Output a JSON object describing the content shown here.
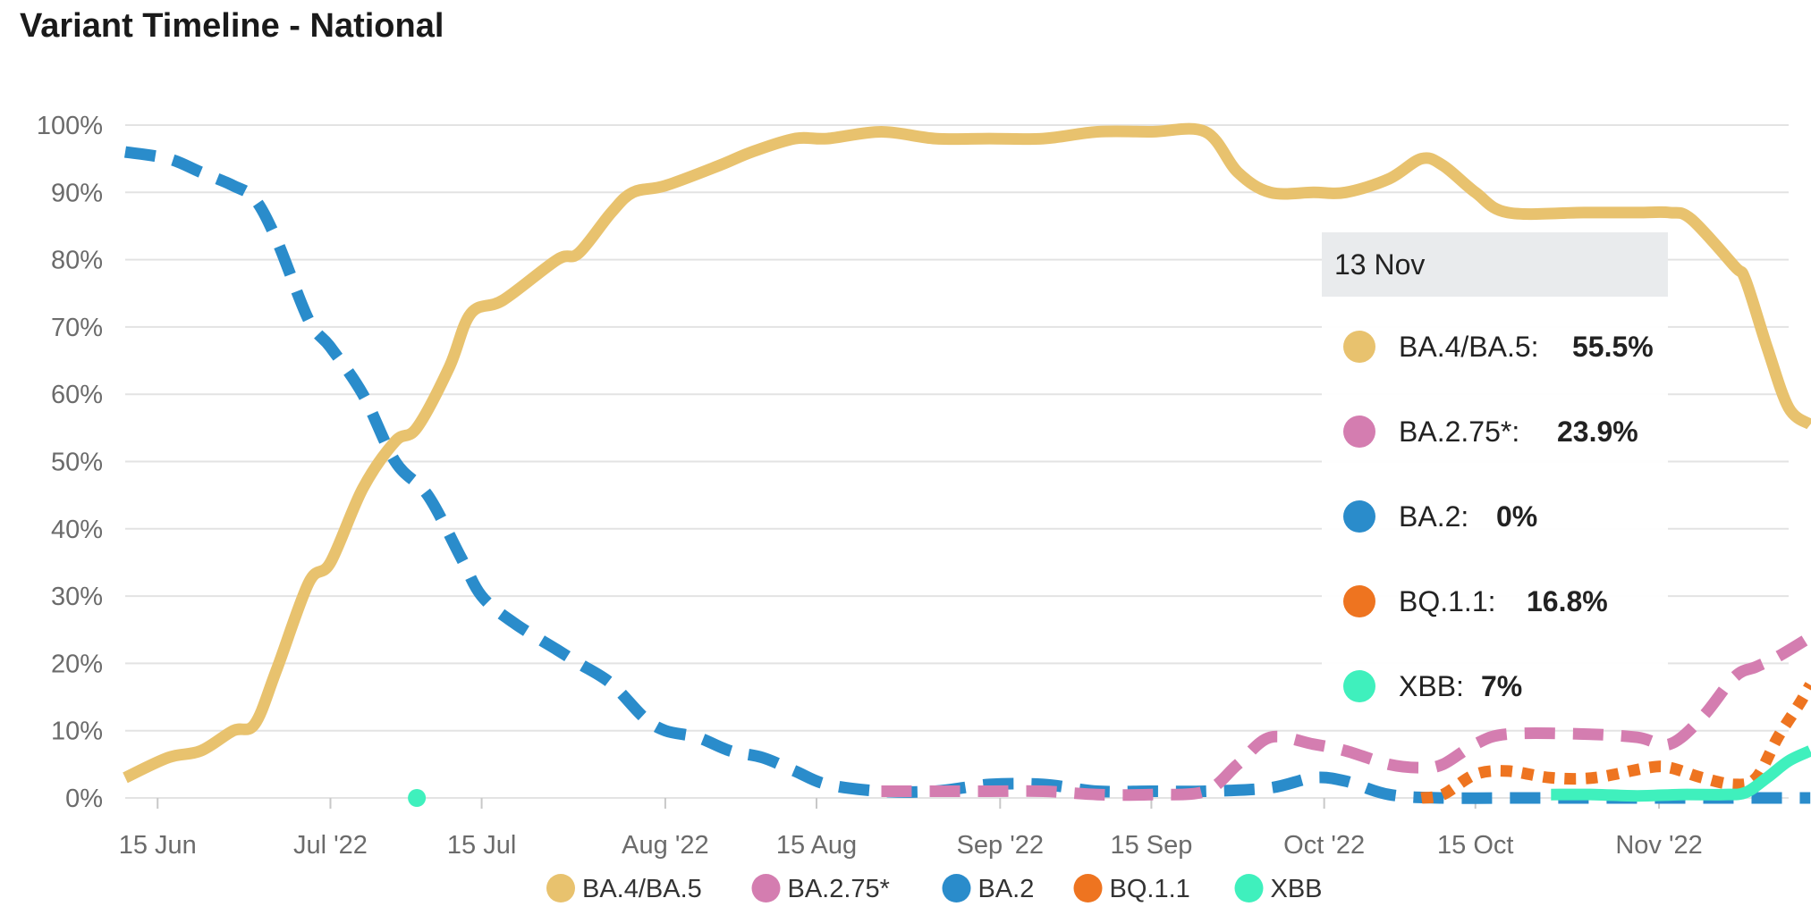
{
  "title": "Variant Timeline - National",
  "colors": {
    "BA.4/BA.5": "#e8c26e",
    "BA.2.75*": "#d47db0",
    "BA.2": "#2a8ccb",
    "BQ.1.1": "#ee7420",
    "XBB": "#3ff0bd",
    "grid": "#e3e3e3",
    "axis_text": "#6b6b6b"
  },
  "tooltip": {
    "date": "13 Nov",
    "rows": [
      {
        "name": "BA.4/BA.5:",
        "value": "55.5%",
        "color": "#e8c26e"
      },
      {
        "name": "BA.2.75*:",
        "value": "23.9%",
        "color": "#d47db0"
      },
      {
        "name": "BA.2:",
        "value": "0%",
        "color": "#2a8ccb"
      },
      {
        "name": "BQ.1.1:",
        "value": "16.8%",
        "color": "#ee7420"
      },
      {
        "name": "XBB:",
        "value": "7%",
        "color": "#3ff0bd"
      }
    ]
  },
  "chart_data": {
    "type": "line",
    "title": "Variant Timeline - National",
    "xlabel": "",
    "ylabel": "",
    "ylim": [
      0,
      100
    ],
    "xlim_days_from_start": [
      0,
      154
    ],
    "x_ticks": [
      {
        "label": "15 Jun",
        "day": 3
      },
      {
        "label": "Jul '22",
        "day": 19
      },
      {
        "label": "15 Jul",
        "day": 33
      },
      {
        "label": "Aug '22",
        "day": 50
      },
      {
        "label": "15 Aug",
        "day": 64
      },
      {
        "label": "Sep '22",
        "day": 81
      },
      {
        "label": "15 Sep",
        "day": 95
      },
      {
        "label": "Oct '22",
        "day": 111
      },
      {
        "label": "15 Oct",
        "day": 125
      },
      {
        "label": "Nov '22",
        "day": 142
      }
    ],
    "y_ticks": [
      "0%",
      "10%",
      "20%",
      "30%",
      "40%",
      "50%",
      "60%",
      "70%",
      "80%",
      "90%",
      "100%"
    ],
    "grid": true,
    "legend_position": "bottom-center",
    "series": [
      {
        "name": "BA.4/BA.5",
        "style": "solid",
        "points": [
          [
            0,
            3
          ],
          [
            4,
            6
          ],
          [
            7,
            7
          ],
          [
            10,
            10
          ],
          [
            12,
            11
          ],
          [
            14,
            19
          ],
          [
            17,
            32
          ],
          [
            19,
            35
          ],
          [
            22,
            46
          ],
          [
            25,
            53
          ],
          [
            27,
            55
          ],
          [
            30,
            64
          ],
          [
            32,
            72
          ],
          [
            35,
            74
          ],
          [
            40,
            80
          ],
          [
            42,
            81
          ],
          [
            45,
            87
          ],
          [
            47,
            90
          ],
          [
            50,
            91
          ],
          [
            55,
            94
          ],
          [
            58,
            96
          ],
          [
            62,
            98
          ],
          [
            65,
            98
          ],
          [
            70,
            99
          ],
          [
            75,
            98
          ],
          [
            80,
            98
          ],
          [
            85,
            98
          ],
          [
            90,
            99
          ],
          [
            95,
            99
          ],
          [
            100,
            99
          ],
          [
            103,
            93
          ],
          [
            106,
            90
          ],
          [
            110,
            90
          ],
          [
            113,
            90
          ],
          [
            117,
            92
          ],
          [
            120,
            95
          ],
          [
            122,
            94
          ],
          [
            125,
            90
          ],
          [
            128,
            87
          ],
          [
            135,
            87
          ],
          [
            140,
            87
          ],
          [
            143,
            87
          ],
          [
            145,
            86
          ],
          [
            149,
            79
          ],
          [
            150,
            77
          ],
          [
            152,
            67
          ],
          [
            154,
            58
          ],
          [
            156,
            55.5
          ]
        ]
      },
      {
        "name": "BA.2.75*",
        "style": "dashed",
        "points": [
          [
            70,
            1
          ],
          [
            75,
            1
          ],
          [
            80,
            1
          ],
          [
            85,
            1
          ],
          [
            90,
            0.5
          ],
          [
            95,
            0.5
          ],
          [
            100,
            1
          ],
          [
            103,
            5
          ],
          [
            106,
            9
          ],
          [
            110,
            8
          ],
          [
            113,
            7
          ],
          [
            117,
            5
          ],
          [
            120,
            4.5
          ],
          [
            122,
            5
          ],
          [
            125,
            8
          ],
          [
            128,
            9.5
          ],
          [
            135,
            9.5
          ],
          [
            140,
            9
          ],
          [
            143,
            8
          ],
          [
            146,
            12
          ],
          [
            149,
            18
          ],
          [
            151,
            19.5
          ],
          [
            153,
            21
          ],
          [
            156,
            23.9
          ]
        ]
      },
      {
        "name": "BA.2",
        "style": "dashed",
        "points": [
          [
            0,
            96
          ],
          [
            4,
            95
          ],
          [
            7,
            93
          ],
          [
            10,
            91
          ],
          [
            12,
            89
          ],
          [
            14,
            83
          ],
          [
            17,
            71
          ],
          [
            19,
            67
          ],
          [
            22,
            60
          ],
          [
            25,
            50
          ],
          [
            28,
            45
          ],
          [
            31,
            36
          ],
          [
            33,
            30
          ],
          [
            36,
            26
          ],
          [
            40,
            22
          ],
          [
            42,
            20
          ],
          [
            45,
            17
          ],
          [
            48,
            12
          ],
          [
            50,
            10
          ],
          [
            53,
            9
          ],
          [
            56,
            7
          ],
          [
            59,
            6
          ],
          [
            62,
            4
          ],
          [
            65,
            2
          ],
          [
            70,
            1
          ],
          [
            75,
            1
          ],
          [
            80,
            2
          ],
          [
            85,
            2
          ],
          [
            90,
            1
          ],
          [
            95,
            1
          ],
          [
            100,
            1
          ],
          [
            106,
            1.5
          ],
          [
            110,
            3
          ],
          [
            113,
            2.5
          ],
          [
            117,
            0.5
          ],
          [
            122,
            0
          ],
          [
            130,
            0
          ],
          [
            140,
            0
          ],
          [
            150,
            0
          ],
          [
            156,
            0
          ]
        ]
      },
      {
        "name": "BQ.1.1",
        "style": "dotted",
        "points": [
          [
            120,
            0
          ],
          [
            122,
            0.5
          ],
          [
            125,
            3.5
          ],
          [
            128,
            4
          ],
          [
            132,
            3
          ],
          [
            136,
            3
          ],
          [
            141,
            4.5
          ],
          [
            143,
            4.5
          ],
          [
            146,
            3
          ],
          [
            149,
            2
          ],
          [
            151,
            3
          ],
          [
            153,
            9
          ],
          [
            155,
            14
          ],
          [
            156,
            16.8
          ]
        ]
      },
      {
        "name": "XBB",
        "style": "solid",
        "points": [
          [
            132,
            0.5
          ],
          [
            136,
            0.5
          ],
          [
            140,
            0.3
          ],
          [
            144,
            0.5
          ],
          [
            148,
            0.5
          ],
          [
            150,
            0.8
          ],
          [
            152,
            3
          ],
          [
            154,
            5.5
          ],
          [
            156,
            7
          ]
        ]
      }
    ],
    "markers": [
      {
        "series": "XBB",
        "day": 27,
        "value": 0
      }
    ]
  }
}
